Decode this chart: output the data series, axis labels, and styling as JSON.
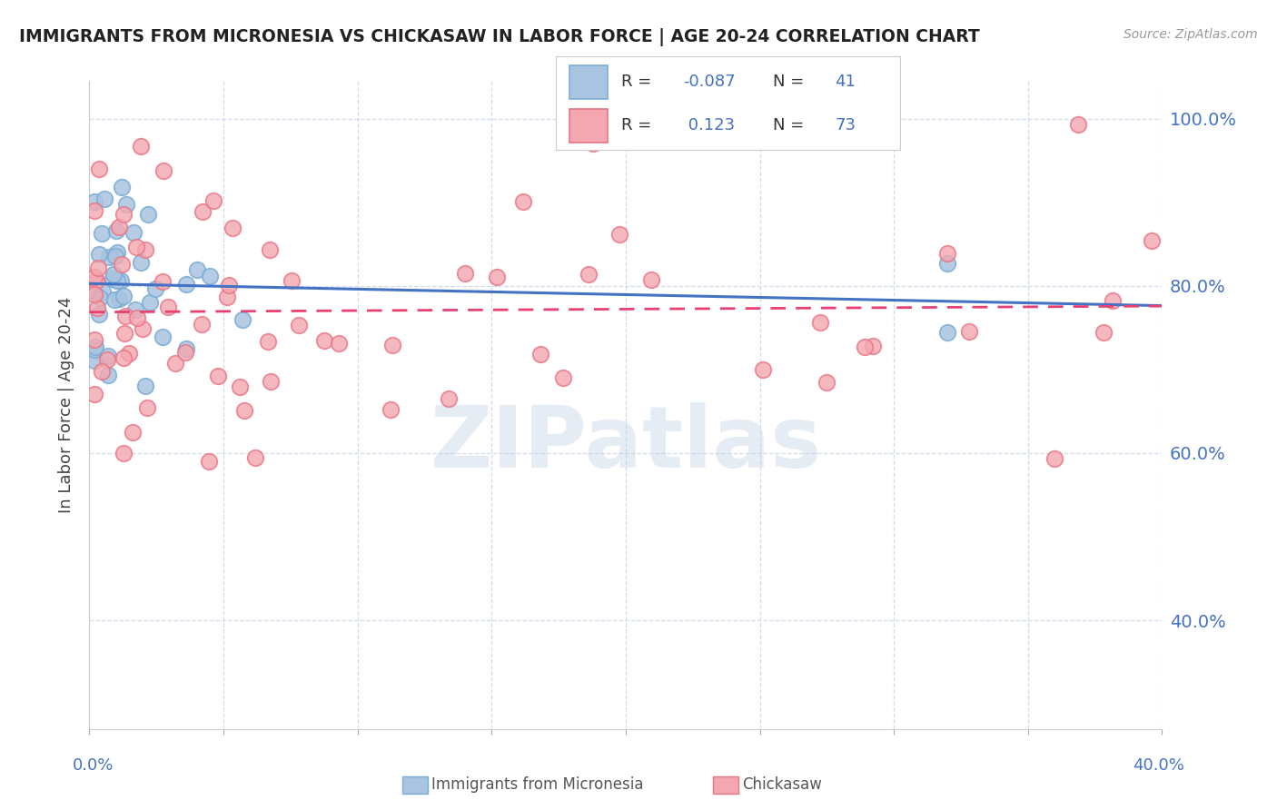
{
  "title": "IMMIGRANTS FROM MICRONESIA VS CHICKASAW IN LABOR FORCE | AGE 20-24 CORRELATION CHART",
  "source": "Source: ZipAtlas.com",
  "ylabel": "In Labor Force | Age 20-24",
  "xmin": 0.0,
  "xmax": 0.4,
  "ymin": 0.27,
  "ymax": 1.045,
  "yticks": [
    0.4,
    0.6,
    0.8,
    1.0
  ],
  "ytick_labels": [
    "40.0%",
    "60.0%",
    "80.0%",
    "100.0%"
  ],
  "watermark": "ZIPatlas",
  "series1_color": "#a8c4e0",
  "series1_edge": "#7badd4",
  "series2_color": "#f4a7b0",
  "series2_edge": "#e87585",
  "trend1_color": "#4472c4",
  "trend2_color": "#e84070",
  "background_color": "#ffffff",
  "grid_color": "#c8d4e8",
  "title_color": "#222222",
  "axis_label_color": "#4472c4",
  "watermark_color": "#c0d0e4",
  "watermark_alpha": 0.4,
  "legend_color_r": "#333333",
  "legend_color_val": "#4472c4"
}
